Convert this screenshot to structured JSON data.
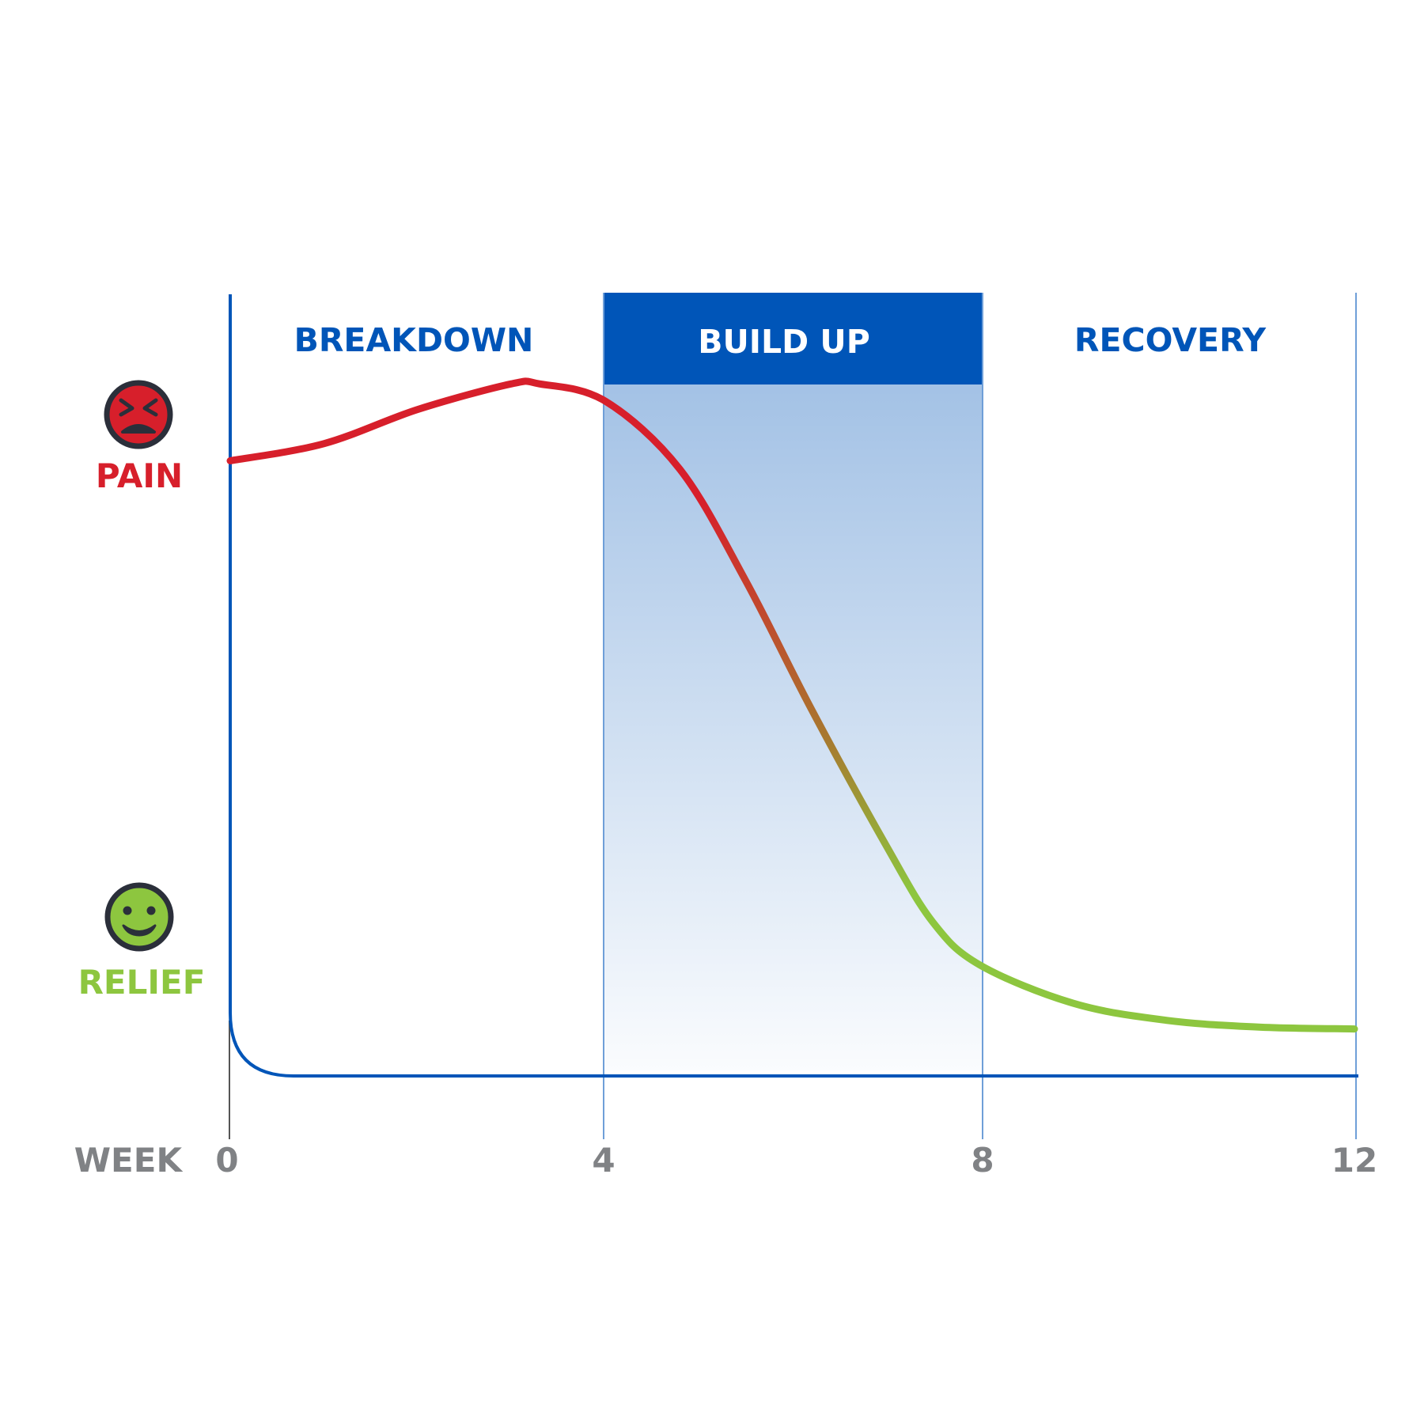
{
  "chart_data": {
    "type": "line",
    "x_axis": {
      "label": "WEEK",
      "ticks": [
        0,
        4,
        8,
        12
      ],
      "range": [
        0,
        12
      ]
    },
    "y_axis": {
      "top_label": "PAIN",
      "bottom_label": "RELIEF"
    },
    "phases": [
      {
        "label": "BREAKDOWN",
        "start": 0,
        "end": 4,
        "highlighted": false
      },
      {
        "label": "BUILD UP",
        "start": 4,
        "end": 8,
        "highlighted": true
      },
      {
        "label": "RECOVERY",
        "start": 8,
        "end": 12,
        "highlighted": false
      }
    ],
    "series": [
      {
        "x": [
          0,
          1,
          2,
          3,
          3.3,
          4,
          4.8,
          5.5,
          6.2,
          7,
          7.5,
          8,
          9,
          10,
          11,
          12
        ],
        "y": [
          0.72,
          0.74,
          0.78,
          0.81,
          0.81,
          0.79,
          0.71,
          0.58,
          0.43,
          0.27,
          0.18,
          0.13,
          0.085,
          0.065,
          0.057,
          0.055
        ]
      }
    ],
    "colors": {
      "pain": "#d71f2b",
      "relief": "#8dc63f",
      "axis": "#0055b8",
      "highlight": "#0055b8",
      "tick": "#808285"
    },
    "icons": {
      "pain": "angry-face-icon",
      "relief": "smiling-face-icon"
    }
  }
}
